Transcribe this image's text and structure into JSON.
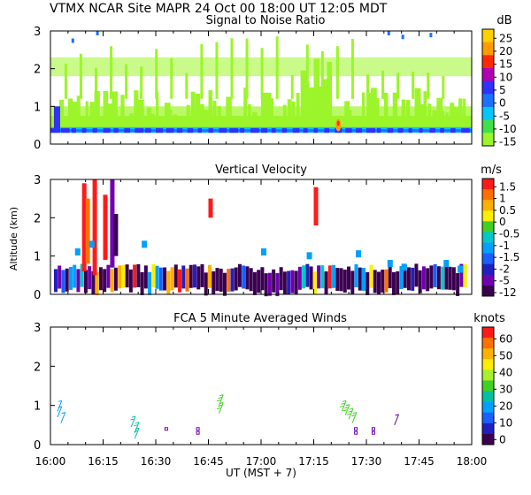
{
  "header": {
    "station": "VTMX",
    "site": "NCAR Site",
    "instrument": "MAPR",
    "date": "24 Oct 00",
    "ut_time": "18:00 UT",
    "local_time": "12:05",
    "tz": "MDT",
    "title_line": "VTMX  NCAR Site  MAPR 24 Oct 00  18:00 UT  12:05  MDT"
  },
  "x_axis": {
    "label": "UT  (MST + 7)",
    "ticks": [
      "16:00",
      "16:15",
      "16:30",
      "16:45",
      "17:00",
      "17:15",
      "17:30",
      "17:45",
      "18:00"
    ],
    "range_min": [
      0,
      120
    ]
  },
  "y_axis_label": "Altitude (km)",
  "chart_data": [
    {
      "type": "heatmap",
      "title": "Signal to Noise Ratio",
      "unit": "dB",
      "ylim": [
        0,
        3
      ],
      "yticks": [
        "0",
        "1",
        "2",
        "3"
      ],
      "colorbar": {
        "labels": [
          "25",
          "20",
          "15",
          "10",
          "5",
          "0",
          "-5",
          "-10",
          "-15"
        ],
        "colors": [
          "#ffd000",
          "#ff9a00",
          "#ff2a00",
          "#b400b4",
          "#3030ff",
          "#1a72ff",
          "#00c8ff",
          "#3fe04a",
          "#9cf52a"
        ]
      }
    },
    {
      "type": "heatmap",
      "title": "Vertical Velocity",
      "unit": "m/s",
      "ylim": [
        0,
        3
      ],
      "yticks": [
        "0",
        "1",
        "2",
        "3"
      ],
      "colorbar": {
        "labels": [
          "1.5",
          "1",
          "0.5",
          "0",
          "-0.5",
          "-1",
          "-1.5",
          "-2",
          "-5",
          "-12"
        ],
        "colors": [
          "#ff1a1a",
          "#ff7000",
          "#ffb000",
          "#ffee00",
          "#40d020",
          "#00c8c8",
          "#00a0ff",
          "#1860ff",
          "#2020c0",
          "#7000b0",
          "#3a0050"
        ]
      }
    },
    {
      "type": "scatter",
      "title": "FCA 5 Minute Averaged Winds",
      "unit": "knots",
      "ylim": [
        0,
        3
      ],
      "yticks": [
        "0",
        "1",
        "2",
        "3"
      ],
      "colorbar": {
        "labels": [
          "60",
          "50",
          "40",
          "30",
          "20",
          "10",
          "0"
        ],
        "colors": [
          "#ff1a1a",
          "#ff7000",
          "#ffb000",
          "#ffee00",
          "#a8f02a",
          "#40d020",
          "#00c0a0",
          "#00a0ff",
          "#1860ff",
          "#2020c0",
          "#3a0050"
        ]
      },
      "barbs": [
        {
          "t": 2,
          "alt": 0.85,
          "speed": 12,
          "color": "#00a0ff"
        },
        {
          "t": 2,
          "alt": 0.7,
          "speed": 12,
          "color": "#00a0ff"
        },
        {
          "t": 3,
          "alt": 0.55,
          "speed": 12,
          "color": "#00a0ff"
        },
        {
          "t": 23,
          "alt": 0.45,
          "speed": 15,
          "color": "#00c0a0"
        },
        {
          "t": 24,
          "alt": 0.3,
          "speed": 15,
          "color": "#00c0a0"
        },
        {
          "t": 24,
          "alt": 0.15,
          "speed": 15,
          "color": "#00c0a0"
        },
        {
          "t": 33,
          "alt": 0.4,
          "speed": 2,
          "color": "#7000b0"
        },
        {
          "t": 42,
          "alt": 0.4,
          "speed": 2,
          "color": "#7000b0"
        },
        {
          "t": 42,
          "alt": 0.3,
          "speed": 2,
          "color": "#7000b0"
        },
        {
          "t": 48,
          "alt": 1.0,
          "speed": 25,
          "color": "#40d020"
        },
        {
          "t": 48,
          "alt": 0.8,
          "speed": 25,
          "color": "#40d020"
        },
        {
          "t": 83,
          "alt": 0.85,
          "speed": 25,
          "color": "#40d020"
        },
        {
          "t": 84,
          "alt": 0.75,
          "speed": 25,
          "color": "#40d020"
        },
        {
          "t": 85,
          "alt": 0.65,
          "speed": 25,
          "color": "#40d020"
        },
        {
          "t": 86,
          "alt": 0.55,
          "speed": 20,
          "color": "#40d020"
        },
        {
          "t": 87,
          "alt": 0.4,
          "speed": 2,
          "color": "#7000b0"
        },
        {
          "t": 87,
          "alt": 0.3,
          "speed": 2,
          "color": "#7000b0"
        },
        {
          "t": 92,
          "alt": 0.4,
          "speed": 2,
          "color": "#7000b0"
        },
        {
          "t": 92,
          "alt": 0.3,
          "speed": 2,
          "color": "#7000b0"
        },
        {
          "t": 98,
          "alt": 0.5,
          "speed": 5,
          "color": "#7000b0"
        }
      ]
    }
  ]
}
